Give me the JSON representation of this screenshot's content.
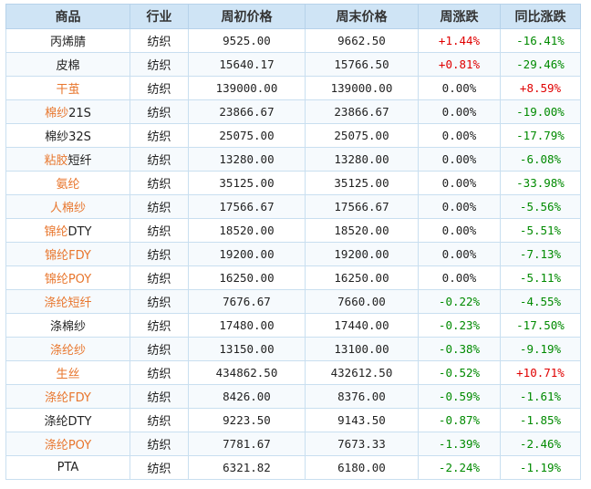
{
  "colors": {
    "header_bg": "#cfe4f5",
    "up": "#e00000",
    "down": "#008a00",
    "link": "#e8762d"
  },
  "headers": [
    "商品",
    "行业",
    "周初价格",
    "周末价格",
    "周涨跌",
    "同比涨跌"
  ],
  "rows": [
    {
      "name_orange": "",
      "name_plain": "丙烯腈",
      "industry": "纺织",
      "open": "9525.00",
      "close": "9662.50",
      "week": "+1.44%",
      "yoy": "-16.41%"
    },
    {
      "name_orange": "",
      "name_plain": "皮棉",
      "industry": "纺织",
      "open": "15640.17",
      "close": "15766.50",
      "week": "+0.81%",
      "yoy": "-29.46%"
    },
    {
      "name_orange": "干茧",
      "name_plain": "",
      "industry": "纺织",
      "open": "139000.00",
      "close": "139000.00",
      "week": "0.00%",
      "yoy": "+8.59%"
    },
    {
      "name_orange": "棉纱",
      "name_plain": "21S",
      "industry": "纺织",
      "open": "23866.67",
      "close": "23866.67",
      "week": "0.00%",
      "yoy": "-19.00%"
    },
    {
      "name_orange": "",
      "name_plain": "棉纱32S",
      "industry": "纺织",
      "open": "25075.00",
      "close": "25075.00",
      "week": "0.00%",
      "yoy": "-17.79%"
    },
    {
      "name_orange": "粘胶",
      "name_plain": "短纤",
      "industry": "纺织",
      "open": "13280.00",
      "close": "13280.00",
      "week": "0.00%",
      "yoy": "-6.08%"
    },
    {
      "name_orange": "氨纶",
      "name_plain": "",
      "industry": "纺织",
      "open": "35125.00",
      "close": "35125.00",
      "week": "0.00%",
      "yoy": "-33.98%"
    },
    {
      "name_orange": "人棉纱",
      "name_plain": "",
      "industry": "纺织",
      "open": "17566.67",
      "close": "17566.67",
      "week": "0.00%",
      "yoy": "-5.56%"
    },
    {
      "name_orange": "锦纶",
      "name_plain": "DTY",
      "industry": "纺织",
      "open": "18520.00",
      "close": "18520.00",
      "week": "0.00%",
      "yoy": "-5.51%"
    },
    {
      "name_orange": "锦纶FDY",
      "name_plain": "",
      "industry": "纺织",
      "open": "19200.00",
      "close": "19200.00",
      "week": "0.00%",
      "yoy": "-7.13%"
    },
    {
      "name_orange": "锦纶POY",
      "name_plain": "",
      "industry": "纺织",
      "open": "16250.00",
      "close": "16250.00",
      "week": "0.00%",
      "yoy": "-5.11%"
    },
    {
      "name_orange": "涤纶短纤",
      "name_plain": "",
      "industry": "纺织",
      "open": "7676.67",
      "close": "7660.00",
      "week": "-0.22%",
      "yoy": "-4.55%"
    },
    {
      "name_orange": "",
      "name_plain": "涤棉纱",
      "industry": "纺织",
      "open": "17480.00",
      "close": "17440.00",
      "week": "-0.23%",
      "yoy": "-17.50%"
    },
    {
      "name_orange": "涤纶纱",
      "name_plain": "",
      "industry": "纺织",
      "open": "13150.00",
      "close": "13100.00",
      "week": "-0.38%",
      "yoy": "-9.19%"
    },
    {
      "name_orange": "生丝",
      "name_plain": "",
      "industry": "纺织",
      "open": "434862.50",
      "close": "432612.50",
      "week": "-0.52%",
      "yoy": "+10.71%"
    },
    {
      "name_orange": "涤纶FDY",
      "name_plain": "",
      "industry": "纺织",
      "open": "8426.00",
      "close": "8376.00",
      "week": "-0.59%",
      "yoy": "-1.61%"
    },
    {
      "name_orange": "",
      "name_plain": "涤纶DTY",
      "industry": "纺织",
      "open": "9223.50",
      "close": "9143.50",
      "week": "-0.87%",
      "yoy": "-1.85%"
    },
    {
      "name_orange": "涤纶POY",
      "name_plain": "",
      "industry": "纺织",
      "open": "7781.67",
      "close": "7673.33",
      "week": "-1.39%",
      "yoy": "-2.46%"
    },
    {
      "name_orange": "",
      "name_plain": "PTA",
      "industry": "纺织",
      "open": "6321.82",
      "close": "6180.00",
      "week": "-2.24%",
      "yoy": "-1.19%"
    }
  ]
}
